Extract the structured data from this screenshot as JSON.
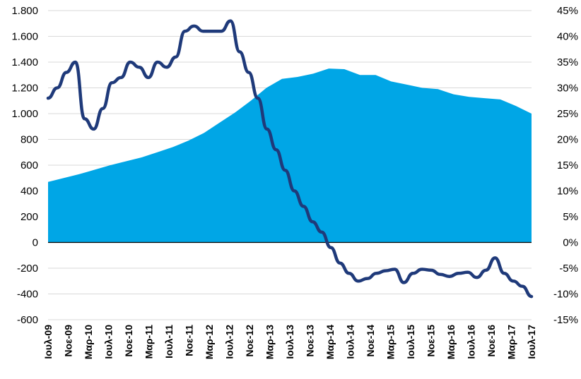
{
  "chart_data": {
    "type": "area",
    "title": "",
    "xlabel": "",
    "ylabel": "",
    "x_tick_labels": [
      "Ιουλ-09",
      "Νοε-09",
      "Μαρ-10",
      "Ιουλ-10",
      "Νοε-10",
      "Μαρ-11",
      "Ιουλ-11",
      "Νοε-11",
      "Μαρ-12",
      "Ιουλ-12",
      "Νοε-12",
      "Μαρ-13",
      "Ιουλ-13",
      "Νοε-13",
      "Μαρ-14",
      "Ιουλ-14",
      "Νοε-14",
      "Μαρ-15",
      "Ιουλ-15",
      "Νοε-15",
      "Μαρ-16",
      "Ιουλ-16",
      "Νοε-16",
      "Μαρ-17",
      "Ιουλ-17"
    ],
    "left_axis": {
      "ylim": [
        -600,
        1800
      ],
      "ticks": [
        -600,
        -400,
        -200,
        0,
        200,
        400,
        600,
        800,
        1000,
        1200,
        1400,
        1600,
        1800
      ],
      "tick_labels": [
        "-600",
        "-400",
        "-200",
        "0",
        "200",
        "400",
        "600",
        "800",
        "1.000",
        "1.200",
        "1.400",
        "1.600",
        "1.800"
      ]
    },
    "right_axis": {
      "ylim": [
        -15,
        45
      ],
      "ticks": [
        -15,
        -10,
        -5,
        0,
        5,
        10,
        15,
        20,
        25,
        30,
        35,
        40,
        45
      ],
      "tick_labels": [
        "-15%",
        "-10%",
        "-5%",
        "0%",
        "5%",
        "10%",
        "15%",
        "20%",
        "25%",
        "30%",
        "35%",
        "40%",
        "45%"
      ]
    },
    "grid": true,
    "legend": "none",
    "series": [
      {
        "kind": "area",
        "axis": "left",
        "color": "#00a6e6",
        "values": [
          470,
          500,
          530,
          565,
          600,
          630,
          660,
          700,
          740,
          790,
          850,
          930,
          1010,
          1100,
          1200,
          1270,
          1285,
          1310,
          1350,
          1345,
          1300,
          1300,
          1250,
          1225,
          1200,
          1190,
          1150,
          1130,
          1120,
          1110,
          1060,
          1000
        ]
      },
      {
        "kind": "line",
        "axis": "right",
        "color": "#1f3a7a",
        "values": [
          28,
          30,
          33,
          35,
          24,
          22,
          26,
          31,
          32,
          35,
          34,
          32,
          35,
          34,
          36,
          41,
          42,
          41,
          41,
          41,
          43,
          37,
          33,
          28,
          22,
          18,
          14,
          10,
          7,
          4,
          2,
          -1,
          -4,
          -6,
          -7.5,
          -7,
          -6,
          -5.5,
          -5.2,
          -7.8,
          -6,
          -5.2,
          -5.4,
          -6.2,
          -6.6,
          -6,
          -5.8,
          -6.8,
          -5.4,
          -3,
          -6,
          -7.5,
          -8.5,
          -10.5
        ]
      }
    ]
  }
}
